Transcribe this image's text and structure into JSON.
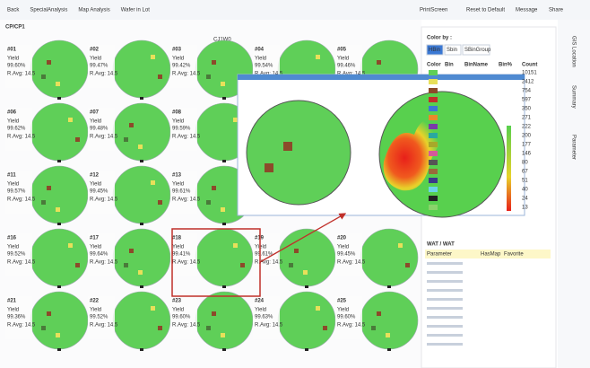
{
  "header": {
    "breadcrumb": [
      "Back",
      "SpecialAnalysis",
      "Map Analysis",
      "Wafer in Lot"
    ],
    "actions": [
      "PrintScreen",
      "Reset to Default",
      "Message",
      "Share"
    ]
  },
  "lot": {
    "title": "CP/CP1",
    "label": "CJ1W0",
    "yield_label": "Yield"
  },
  "wafers": [
    {
      "id": "#01",
      "yield": "99.60%",
      "ravg": "R.Avg: 14.5"
    },
    {
      "id": "#02",
      "yield": "99.47%",
      "ravg": "R.Avg: 14.5"
    },
    {
      "id": "#03",
      "yield": "99.42%",
      "ravg": "R.Avg: 14.5"
    },
    {
      "id": "#04",
      "yield": "99.54%",
      "ravg": "R.Avg: 14.5"
    },
    {
      "id": "#05",
      "yield": "99.46%",
      "ravg": "R.Avg: 14.5"
    },
    {
      "id": "#06",
      "yield": "99.62%",
      "ravg": "R.Avg: 14.5"
    },
    {
      "id": "#07",
      "yield": "99.48%",
      "ravg": "R.Avg: 14.5"
    },
    {
      "id": "#08",
      "yield": "99.59%",
      "ravg": "R.Avg: 14.5"
    },
    {
      "id": "#11",
      "yield": "99.57%",
      "ravg": "R.Avg: 14.5"
    },
    {
      "id": "#12",
      "yield": "99.45%",
      "ravg": "R.Avg: 14.5"
    },
    {
      "id": "#13",
      "yield": "99.61%",
      "ravg": "R.Avg: 14.5"
    },
    {
      "id": "#16",
      "yield": "99.52%",
      "ravg": "R.Avg: 14.5"
    },
    {
      "id": "#17",
      "yield": "99.64%",
      "ravg": "R.Avg: 14.5"
    },
    {
      "id": "#18",
      "yield": "99.41%",
      "ravg": "R.Avg: 14.5"
    },
    {
      "id": "#19",
      "yield": "99.61%",
      "ravg": "R.Avg: 14.5"
    },
    {
      "id": "#20",
      "yield": "99.45%",
      "ravg": "R.Avg: 14.5"
    },
    {
      "id": "#21",
      "yield": "99.36%",
      "ravg": "R.Avg: 14.5"
    },
    {
      "id": "#22",
      "yield": "99.52%",
      "ravg": "R.Avg: 14.5"
    },
    {
      "id": "#23",
      "yield": "99.60%",
      "ravg": "R.Avg: 14.5"
    },
    {
      "id": "#24",
      "yield": "99.63%",
      "ravg": "R.Avg: 14.5"
    },
    {
      "id": "#25",
      "yield": "99.60%",
      "ravg": "R.Avg: 14.5"
    }
  ],
  "panel": {
    "color_by": "Color by :",
    "tabs": [
      "HBin",
      "Sbin",
      "SBinGroup"
    ],
    "columns": [
      "Color",
      "Bin",
      "BinName",
      "Bin%",
      "Count"
    ],
    "counts": [
      10151,
      2412,
      754,
      597,
      350,
      271,
      222,
      200,
      177,
      146,
      80,
      67,
      51,
      40,
      24,
      13
    ],
    "wat_title": "WAT / WAT",
    "wat_columns": [
      "Parameter",
      "HasMap",
      "Favorite"
    ]
  },
  "side_tabs": [
    "GIS Location",
    "Summary",
    "Parameter"
  ]
}
